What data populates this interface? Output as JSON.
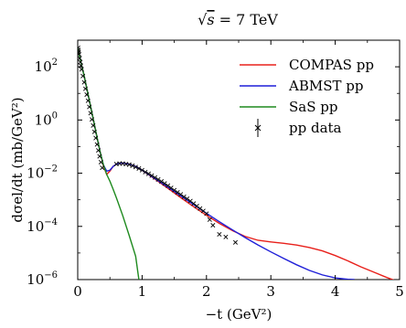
{
  "chart_data": {
    "type": "line",
    "title": "√s = 7 TeV",
    "title_parts": {
      "sqrt": "√",
      "s": "s",
      "rest": " = 7 TeV"
    },
    "xlabel": "−t (GeV²)",
    "ylabel": "dσel/dt (mb/GeV²)",
    "xlim": [
      0,
      5
    ],
    "ylim": [
      1e-06,
      1000
    ],
    "yscale": "log",
    "grid": false,
    "legend_position": "top-right",
    "x_ticks": [
      {
        "value": 0,
        "label": "0"
      },
      {
        "value": 1,
        "label": "1"
      },
      {
        "value": 2,
        "label": "2"
      },
      {
        "value": 3,
        "label": "3"
      },
      {
        "value": 4,
        "label": "4"
      },
      {
        "value": 5,
        "label": "5"
      }
    ],
    "y_ticks": [
      {
        "value": 1e-06,
        "base": "10",
        "exp": "−6"
      },
      {
        "value": 0.0001,
        "base": "10",
        "exp": "−4"
      },
      {
        "value": 0.01,
        "base": "10",
        "exp": "−2"
      },
      {
        "value": 1,
        "base": "10",
        "exp": "0"
      },
      {
        "value": 100,
        "base": "10",
        "exp": "2"
      }
    ],
    "series": [
      {
        "name": "COMPAS pp",
        "color": "#e8201b",
        "style": "line",
        "x": [
          0.0,
          0.05,
          0.1,
          0.15,
          0.2,
          0.25,
          0.3,
          0.35,
          0.4,
          0.45,
          0.5,
          0.55,
          0.6,
          0.65,
          0.7,
          0.8,
          0.9,
          1.0,
          1.2,
          1.4,
          1.6,
          1.8,
          2.0,
          2.2,
          2.4,
          2.6,
          2.8,
          3.0,
          3.2,
          3.4,
          3.6,
          3.8,
          4.0,
          4.2,
          4.4,
          4.6,
          4.8,
          5.0
        ],
        "y": [
          500,
          150,
          45,
          12,
          3.2,
          0.85,
          0.22,
          0.06,
          0.018,
          0.009,
          0.012,
          0.018,
          0.022,
          0.024,
          0.024,
          0.022,
          0.018,
          0.013,
          0.006,
          0.0027,
          0.0012,
          0.00055,
          0.00026,
          0.00013,
          7e-05,
          4.2e-05,
          3e-05,
          2.6e-05,
          2.3e-05,
          2e-05,
          1.6e-05,
          1.2e-05,
          8e-06,
          5e-06,
          3e-06,
          1.9e-06,
          1.2e-06,
          8e-07
        ]
      },
      {
        "name": "ABMST pp",
        "color": "#1f1fd8",
        "style": "line",
        "x": [
          0.0,
          0.05,
          0.1,
          0.15,
          0.2,
          0.25,
          0.3,
          0.35,
          0.4,
          0.45,
          0.5,
          0.55,
          0.6,
          0.65,
          0.7,
          0.8,
          0.9,
          1.0,
          1.2,
          1.4,
          1.6,
          1.8,
          2.0,
          2.2,
          2.4,
          2.6,
          2.8,
          3.0,
          3.2,
          3.4,
          3.6,
          3.8,
          4.0,
          4.2,
          4.3
        ],
        "y": [
          500,
          150,
          45,
          12,
          3.2,
          0.85,
          0.22,
          0.06,
          0.02,
          0.012,
          0.013,
          0.018,
          0.022,
          0.024,
          0.024,
          0.022,
          0.018,
          0.013,
          0.0062,
          0.003,
          0.0014,
          0.00066,
          0.00031,
          0.00015,
          7.5e-05,
          3.8e-05,
          2e-05,
          1.1e-05,
          6.2e-06,
          3.6e-06,
          2.2e-06,
          1.5e-06,
          1.15e-06,
          1.02e-06,
          1e-06
        ]
      },
      {
        "name": "SaS pp",
        "color": "#1e8a1e",
        "style": "line",
        "x": [
          0.0,
          0.05,
          0.1,
          0.15,
          0.2,
          0.25,
          0.3,
          0.35,
          0.4,
          0.45,
          0.5,
          0.55,
          0.6,
          0.7,
          0.8,
          0.9,
          0.95
        ],
        "y": [
          500,
          150,
          45,
          12,
          3.2,
          0.85,
          0.22,
          0.06,
          0.02,
          0.009,
          0.005,
          0.0025,
          0.0012,
          0.00025,
          4.5e-05,
          7.5e-06,
          1e-06
        ]
      },
      {
        "name": "pp data",
        "color": "#000000",
        "style": "points",
        "x": [
          0.005,
          0.01,
          0.015,
          0.02,
          0.03,
          0.04,
          0.05,
          0.06,
          0.08,
          0.1,
          0.12,
          0.14,
          0.16,
          0.18,
          0.2,
          0.22,
          0.24,
          0.26,
          0.28,
          0.3,
          0.32,
          0.34,
          0.36,
          0.38,
          0.6,
          0.65,
          0.7,
          0.75,
          0.8,
          0.85,
          0.9,
          0.95,
          1.0,
          1.05,
          1.1,
          1.15,
          1.2,
          1.25,
          1.3,
          1.35,
          1.4,
          1.45,
          1.5,
          1.55,
          1.6,
          1.65,
          1.7,
          1.75,
          1.8,
          1.85,
          1.9,
          1.95,
          2.0,
          2.05,
          2.1,
          2.2,
          2.3,
          2.45
        ],
        "y": [
          520,
          430,
          360,
          300,
          210,
          150,
          110,
          80,
          45,
          26,
          15,
          9,
          5.3,
          3.1,
          1.8,
          1.05,
          0.62,
          0.36,
          0.21,
          0.12,
          0.072,
          0.043,
          0.026,
          0.016,
          0.022,
          0.023,
          0.023,
          0.022,
          0.021,
          0.019,
          0.017,
          0.015,
          0.013,
          0.011,
          0.0095,
          0.0081,
          0.0069,
          0.0058,
          0.0049,
          0.0041,
          0.0034,
          0.0028,
          0.0023,
          0.0019,
          0.0016,
          0.0013,
          0.0011,
          0.0009,
          0.00072,
          0.00058,
          0.00047,
          0.00038,
          0.0003,
          0.00018,
          0.00011,
          5e-05,
          4e-05,
          2.5e-05
        ]
      }
    ]
  }
}
